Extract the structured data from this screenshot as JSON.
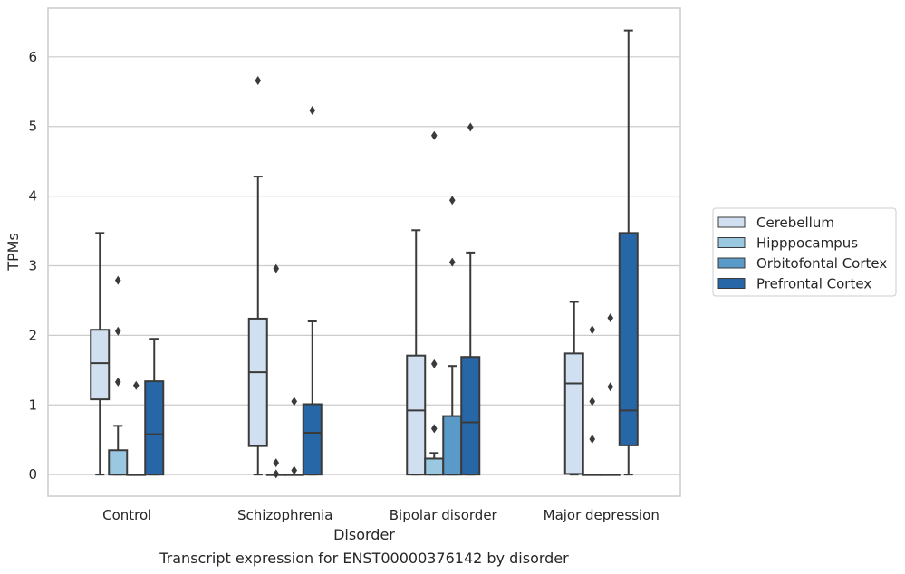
{
  "chart_data": {
    "type": "box",
    "caption": "Transcript expression for ENST00000376142 by disorder",
    "xlabel": "Disorder",
    "ylabel": "TPMs",
    "ylim": [
      -0.31,
      6.7
    ],
    "yticks": [
      0,
      1,
      2,
      3,
      4,
      5,
      6
    ],
    "grid": "horizontal",
    "legend_position": "right",
    "categories": [
      "Control",
      "Schizophrenia",
      "Bipolar disorder",
      "Major depression"
    ],
    "series": [
      {
        "name": "Cerebellum",
        "color": "#d0e0f0",
        "boxes": [
          {
            "min": 0,
            "q1": 1.08,
            "median": 1.6,
            "q3": 2.08,
            "max": 3.47,
            "outliers": []
          },
          {
            "min": 0,
            "q1": 0.41,
            "median": 1.47,
            "q3": 2.24,
            "max": 4.28,
            "outliers": [
              5.66
            ]
          },
          {
            "min": 0,
            "q1": 0,
            "median": 0.92,
            "q3": 1.71,
            "max": 3.51,
            "outliers": []
          },
          {
            "min": 0,
            "q1": 0.01,
            "median": 1.31,
            "q3": 1.74,
            "max": 2.48,
            "outliers": []
          }
        ]
      },
      {
        "name": "Hipppocampus",
        "color": "#9ac8e0",
        "boxes": [
          {
            "min": 0,
            "q1": 0,
            "median": 0,
            "q3": 0.35,
            "max": 0.7,
            "outliers": [
              1.33,
              2.06,
              2.79
            ]
          },
          {
            "min": 0,
            "q1": 0,
            "median": 0,
            "q3": 0,
            "max": 0,
            "outliers": [
              0.01,
              0.17,
              2.96
            ]
          },
          {
            "min": 0,
            "q1": 0,
            "median": 0,
            "q3": 0.23,
            "max": 0.31,
            "outliers": [
              0.66,
              1.59,
              4.87
            ]
          },
          {
            "min": 0,
            "q1": 0,
            "median": 0,
            "q3": 0,
            "max": 0,
            "outliers": [
              0.51,
              1.05,
              2.08
            ]
          }
        ]
      },
      {
        "name": "Orbitofontal Cortex",
        "color": "#5a9ac9",
        "boxes": [
          {
            "min": 0,
            "q1": 0,
            "median": 0,
            "q3": 0,
            "max": 0,
            "outliers": [
              1.28
            ]
          },
          {
            "min": 0,
            "q1": 0,
            "median": 0,
            "q3": 0,
            "max": 0,
            "outliers": [
              0.06,
              1.05
            ]
          },
          {
            "min": 0,
            "q1": 0,
            "median": 0,
            "q3": 0.84,
            "max": 1.56,
            "outliers": [
              3.05,
              3.94
            ]
          },
          {
            "min": 0,
            "q1": 0,
            "median": 0,
            "q3": 0,
            "max": 0,
            "outliers": [
              1.26,
              2.25
            ]
          }
        ]
      },
      {
        "name": "Prefrontal Cortex",
        "color": "#2767a8",
        "boxes": [
          {
            "min": 0,
            "q1": 0,
            "median": 0.58,
            "q3": 1.34,
            "max": 1.95,
            "outliers": []
          },
          {
            "min": 0,
            "q1": 0,
            "median": 0.6,
            "q3": 1.01,
            "max": 2.2,
            "outliers": [
              5.23
            ]
          },
          {
            "min": 0,
            "q1": 0,
            "median": 0.75,
            "q3": 1.69,
            "max": 3.19,
            "outliers": [
              4.99
            ]
          },
          {
            "min": 0,
            "q1": 0.42,
            "median": 0.92,
            "q3": 3.47,
            "max": 6.38,
            "outliers": []
          }
        ]
      }
    ]
  }
}
